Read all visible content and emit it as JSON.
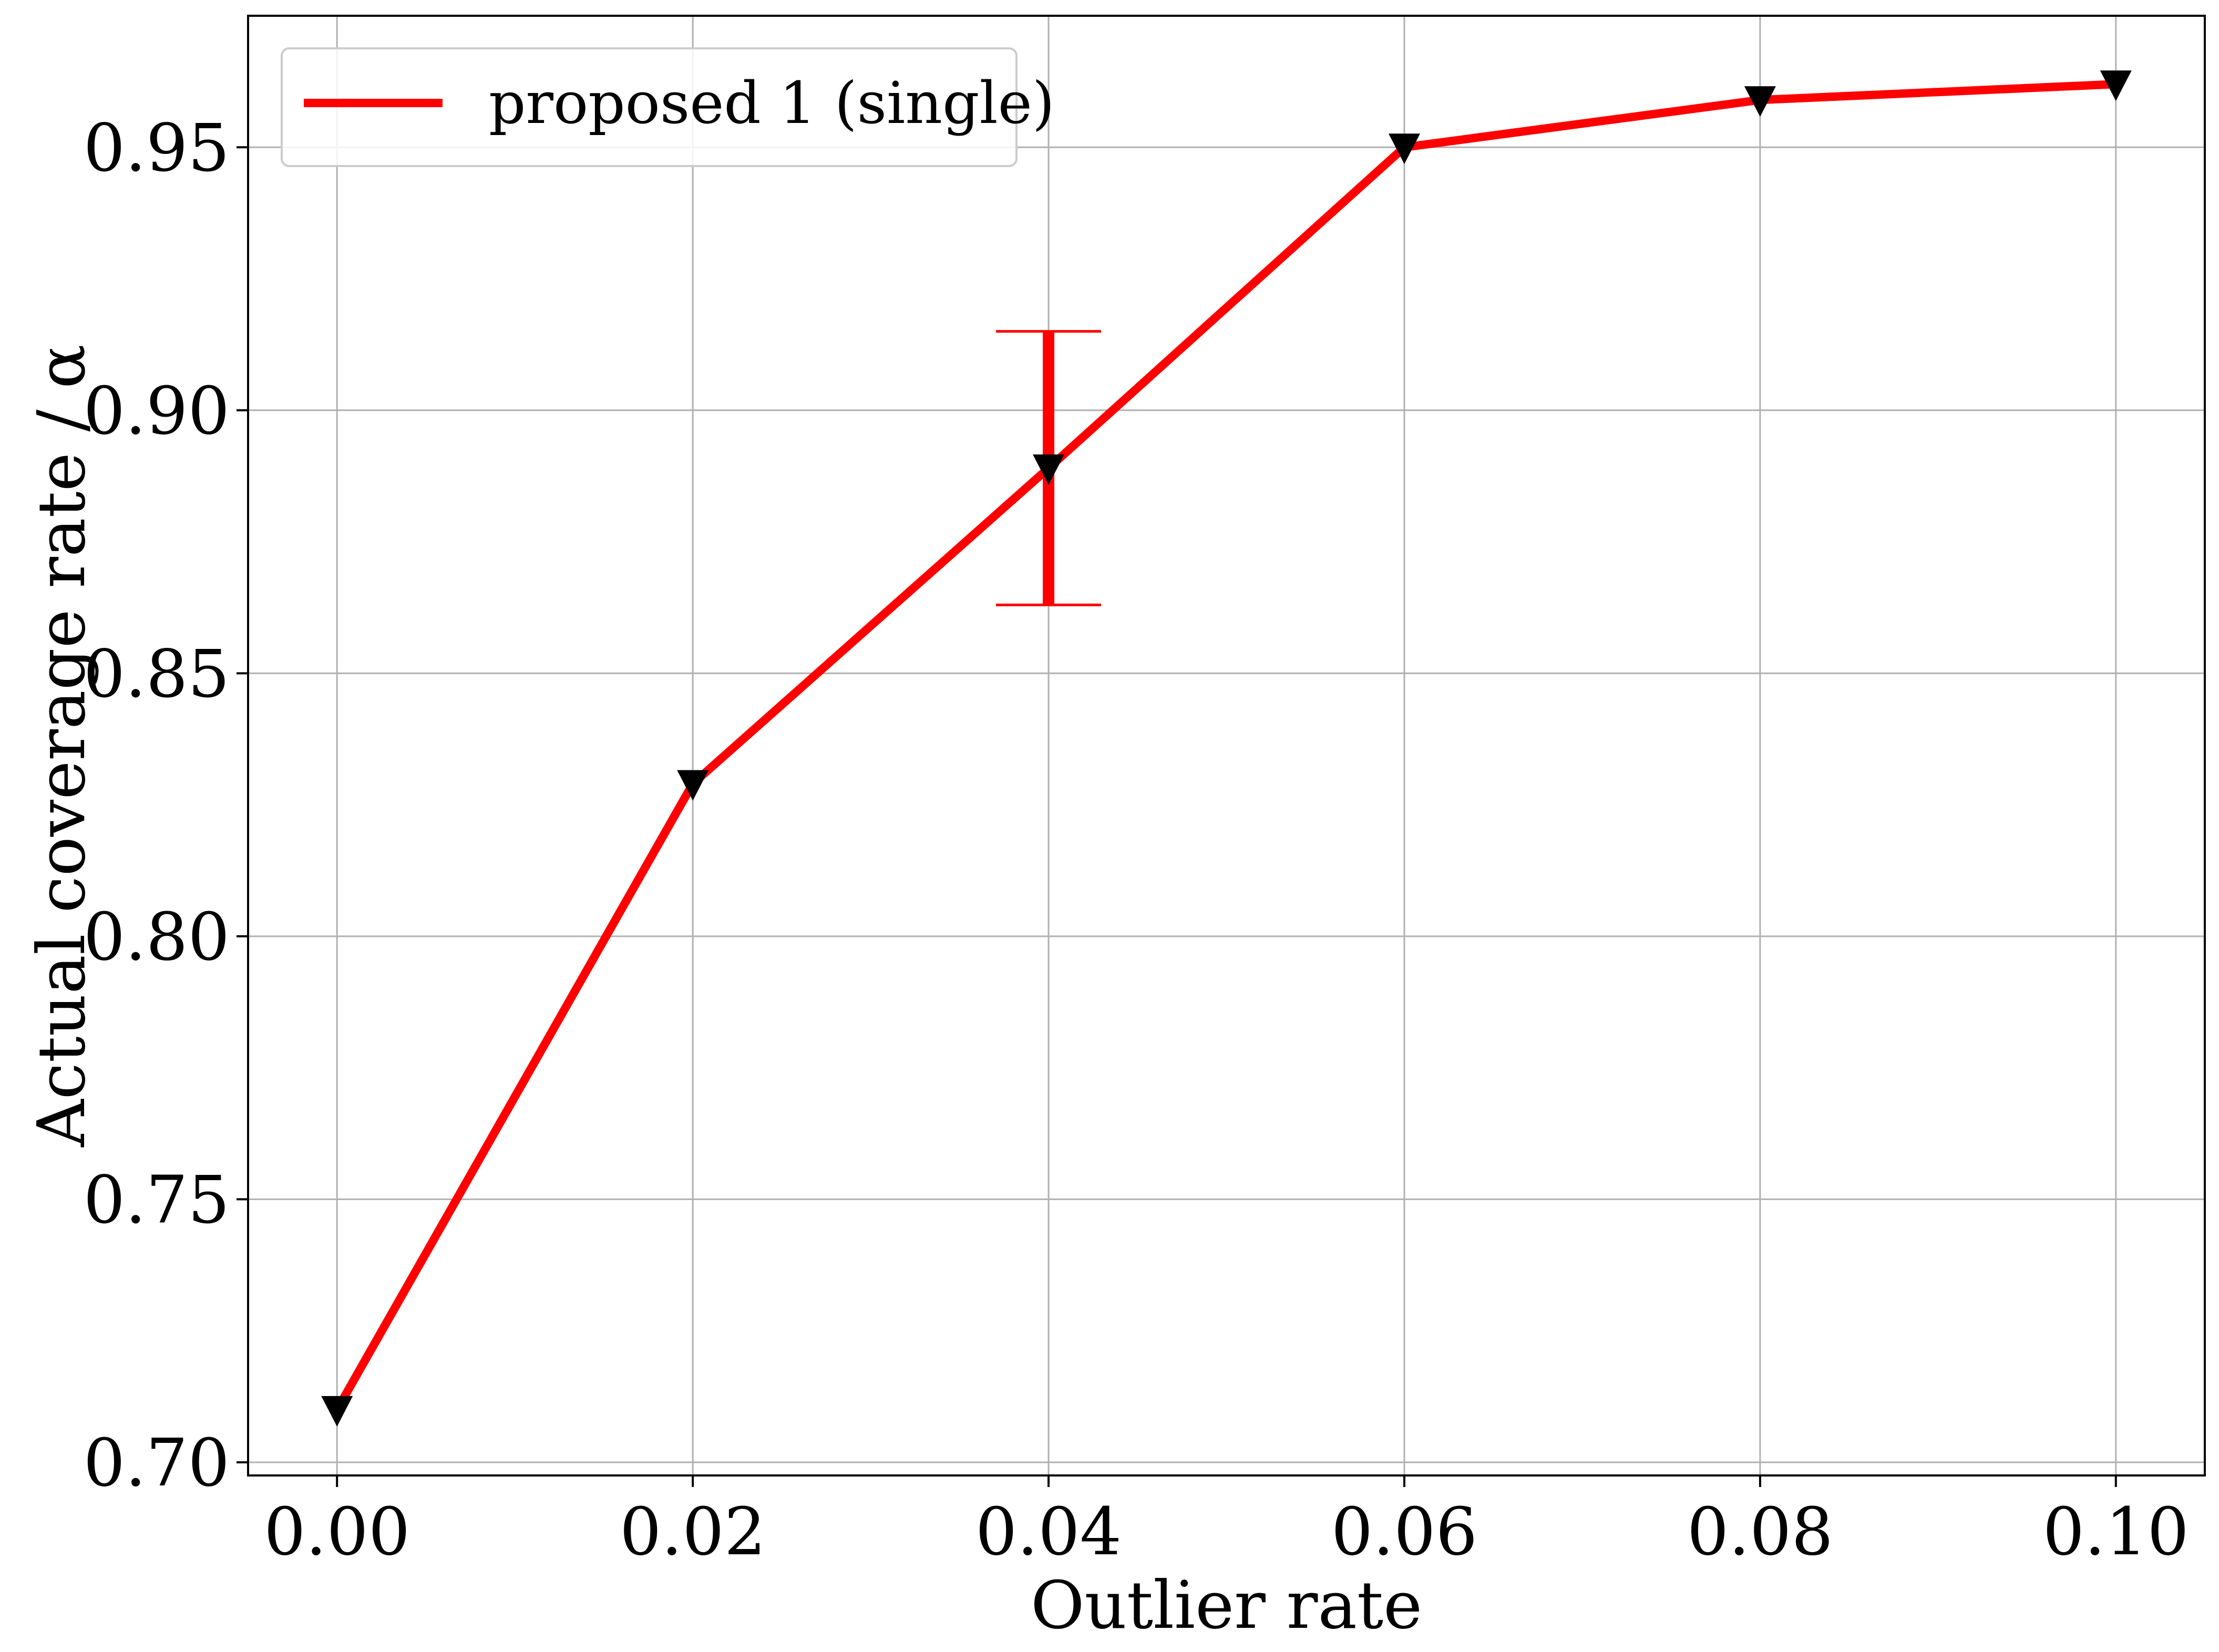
{
  "chart_data": {
    "type": "line",
    "title": "",
    "xlabel": "Outlier rate",
    "ylabel": "Actual coverage rate / α",
    "xlim": [
      -0.005,
      0.105
    ],
    "ylim": [
      0.6975,
      0.975
    ],
    "xticks": [
      0.0,
      0.02,
      0.04,
      0.06,
      0.08,
      0.1
    ],
    "xtick_labels": [
      "0.00",
      "0.02",
      "0.04",
      "0.06",
      "0.08",
      "0.10"
    ],
    "yticks": [
      0.7,
      0.75,
      0.8,
      0.85,
      0.9,
      0.95
    ],
    "ytick_labels": [
      "0.70",
      "0.75",
      "0.80",
      "0.85",
      "0.90",
      "0.95"
    ],
    "grid": true,
    "legend_position": "top-left",
    "series": [
      {
        "name": "proposed 1 (single)",
        "color": "#ff0000",
        "marker": "triangle-down",
        "marker_color": "#000000",
        "x": [
          0.0,
          0.02,
          0.04,
          0.06,
          0.08,
          0.1
        ],
        "y": [
          0.71,
          0.829,
          0.889,
          0.95,
          0.959,
          0.962
        ],
        "error_bars": [
          {
            "x": 0.04,
            "low": 0.863,
            "high": 0.915
          }
        ]
      }
    ]
  }
}
